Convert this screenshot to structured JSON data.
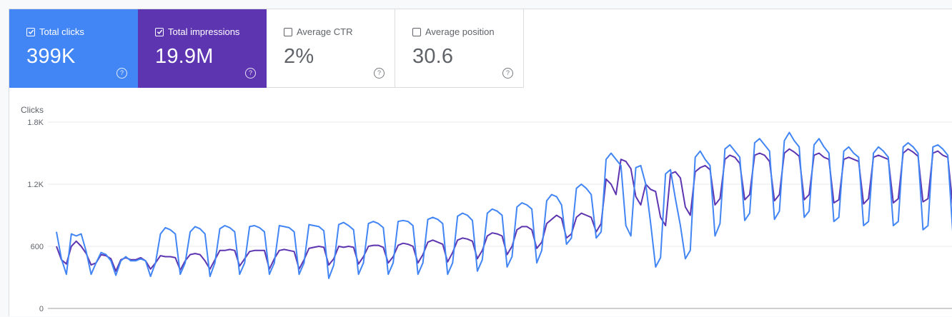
{
  "metrics": [
    {
      "label": "Total clicks",
      "value": "399K",
      "checked": true,
      "color": "#4285f4"
    },
    {
      "label": "Total impressions",
      "value": "19.9M",
      "checked": true,
      "color": "#5e35b1"
    },
    {
      "label": "Average CTR",
      "value": "2%",
      "checked": false,
      "color": "#ffffff"
    },
    {
      "label": "Average position",
      "value": "30.6",
      "checked": false,
      "color": "#ffffff"
    }
  ],
  "help_glyph": "?",
  "chart_data": {
    "type": "line",
    "ylabel": "Clicks",
    "ylim": [
      0,
      1800
    ],
    "y_ticks": [
      "0",
      "600",
      "1.2K",
      "1.8K"
    ],
    "y_tick_values": [
      0,
      600,
      1200,
      1800
    ],
    "grid": true,
    "legend": "none",
    "x": "days 1-180 (no date labels shown)",
    "series": [
      {
        "color": "#5e35b1",
        "values": [
          600,
          470,
          430,
          600,
          650,
          600,
          530,
          420,
          440,
          520,
          510,
          480,
          360,
          470,
          490,
          470,
          470,
          490,
          460,
          380,
          440,
          510,
          500,
          500,
          490,
          370,
          460,
          520,
          530,
          520,
          460,
          380,
          470,
          560,
          560,
          570,
          560,
          410,
          480,
          550,
          560,
          560,
          560,
          380,
          480,
          560,
          570,
          560,
          550,
          380,
          470,
          580,
          590,
          600,
          590,
          420,
          480,
          600,
          590,
          600,
          590,
          430,
          500,
          600,
          610,
          610,
          590,
          440,
          500,
          610,
          630,
          620,
          600,
          440,
          520,
          640,
          660,
          640,
          620,
          450,
          540,
          660,
          680,
          670,
          650,
          480,
          560,
          700,
          730,
          720,
          700,
          520,
          600,
          760,
          790,
          790,
          760,
          580,
          640,
          820,
          860,
          900,
          870,
          680,
          720,
          880,
          920,
          900,
          880,
          740,
          820,
          1250,
          1200,
          1100,
          1440,
          1420,
          1350,
          1080,
          1000,
          1200,
          1150,
          1130,
          880,
          800,
          1300,
          1320,
          1260,
          980,
          900,
          1320,
          1360,
          1380,
          1340,
          1000,
          1060,
          1440,
          1480,
          1460,
          1400,
          1050,
          1100,
          1480,
          1500,
          1480,
          1420,
          1040,
          1100,
          1500,
          1540,
          1510,
          1470,
          1050,
          1100,
          1480,
          1500,
          1460,
          1440,
          1020,
          1050,
          1440,
          1460,
          1440,
          1420,
          1010,
          1060,
          1460,
          1480,
          1460,
          1440,
          1020,
          1060,
          1500,
          1540,
          1510,
          1470,
          1030,
          1060,
          1500,
          1520,
          1480,
          1460,
          1000
        ]
      },
      {
        "color": "#4285f4",
        "values": [
          740,
          480,
          330,
          720,
          700,
          720,
          550,
          330,
          440,
          540,
          520,
          460,
          320,
          460,
          500,
          460,
          460,
          480,
          460,
          310,
          440,
          720,
          780,
          760,
          720,
          330,
          440,
          740,
          790,
          770,
          720,
          310,
          440,
          770,
          800,
          780,
          740,
          330,
          440,
          790,
          800,
          780,
          740,
          330,
          440,
          800,
          790,
          780,
          740,
          330,
          440,
          810,
          800,
          790,
          750,
          290,
          420,
          810,
          830,
          800,
          760,
          330,
          440,
          820,
          840,
          820,
          780,
          330,
          440,
          840,
          850,
          840,
          800,
          330,
          440,
          860,
          880,
          860,
          820,
          330,
          440,
          890,
          920,
          900,
          850,
          360,
          470,
          920,
          960,
          940,
          900,
          400,
          500,
          980,
          1020,
          1000,
          960,
          440,
          560,
          1040,
          1100,
          1080,
          1000,
          620,
          680,
          1160,
          1200,
          1160,
          1100,
          680,
          740,
          1440,
          1500,
          1440,
          1380,
          800,
          700,
          1360,
          1380,
          1200,
          820,
          400,
          490,
          1300,
          1340,
          1060,
          800,
          480,
          560,
          1460,
          1520,
          1440,
          1380,
          700,
          820,
          1540,
          1580,
          1520,
          1460,
          850,
          920,
          1600,
          1640,
          1580,
          1520,
          860,
          940,
          1620,
          1700,
          1620,
          1560,
          880,
          940,
          1580,
          1640,
          1560,
          1500,
          840,
          880,
          1520,
          1560,
          1500,
          1460,
          800,
          840,
          1500,
          1560,
          1520,
          1460,
          800,
          840,
          1560,
          1600,
          1560,
          1500,
          760,
          800,
          1560,
          1580,
          1540,
          1480,
          740
        ]
      }
    ]
  }
}
